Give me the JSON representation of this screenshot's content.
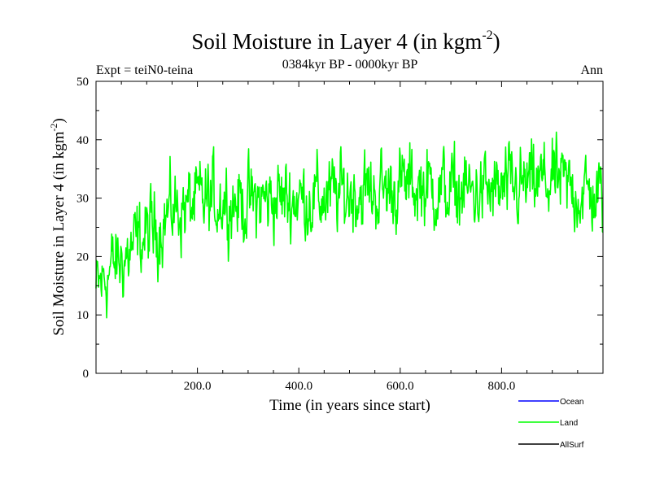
{
  "chart_data": {
    "type": "line",
    "title": "Soil Moisture in Layer 4 (in kgm",
    "title_sup": "-2",
    "title_close": ")",
    "subtitle": "0384kyr BP - 0000kyr BP",
    "left_note": "Expt = teiN0-teina",
    "right_note": "Ann",
    "xlabel": "Time (in years since start)",
    "ylabel": "Soil Moisture in Layer 4 (in kgm",
    "ylabel_sup": "-2",
    "ylabel_close": ")",
    "xlim": [
      0,
      1000
    ],
    "ylim": [
      0,
      50
    ],
    "x_ticks": [
      200,
      400,
      600,
      800
    ],
    "x_tick_labels": [
      "200.0",
      "400.0",
      "600.0",
      "800.0"
    ],
    "y_ticks": [
      0,
      10,
      20,
      30,
      40,
      50
    ],
    "y_tick_labels": [
      "0",
      "10",
      "20",
      "30",
      "40",
      "50"
    ],
    "grid": false,
    "legend_position": "bottom-right",
    "series": [
      {
        "name": "Ocean",
        "color": "#0000ff",
        "values": []
      },
      {
        "name": "Land",
        "color": "#00ff00",
        "x_start": 0,
        "x_end": 1000,
        "samples": 1000,
        "trend_knots": {
          "x": [
            0,
            30,
            60,
            90,
            120,
            150,
            200,
            250,
            300,
            350,
            400,
            450,
            500,
            550,
            600,
            650,
            700,
            750,
            800,
            850,
            900,
            950,
            1000
          ],
          "y": [
            14,
            18,
            20,
            23,
            25,
            28,
            29,
            30,
            29,
            30,
            30,
            30,
            31,
            31,
            32,
            32,
            31,
            31,
            31,
            32,
            33,
            31,
            30
          ]
        },
        "noise_amplitude": 3.6
      },
      {
        "name": "AllSurf",
        "color": "#000000",
        "values": []
      }
    ]
  }
}
